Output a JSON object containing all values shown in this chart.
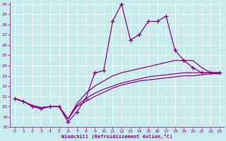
{
  "xlabel": "Windchill (Refroidissement éolien,°C)",
  "bg_color": "#c8ecec",
  "line_color": "#880088",
  "grid_color": "#ffffff",
  "xlim": [
    -0.5,
    23.5
  ],
  "ylim": [
    18,
    30.2
  ],
  "yticks": [
    18,
    19,
    20,
    21,
    22,
    23,
    24,
    25,
    26,
    27,
    28,
    29,
    30
  ],
  "xticks": [
    0,
    1,
    2,
    3,
    4,
    5,
    6,
    7,
    8,
    9,
    10,
    11,
    12,
    13,
    14,
    15,
    16,
    17,
    18,
    19,
    20,
    21,
    22,
    23
  ],
  "line1_x": [
    0,
    1,
    2,
    3,
    4,
    5,
    6,
    7,
    8,
    9,
    10,
    11,
    12,
    13,
    14,
    15,
    16,
    17,
    18,
    19,
    20,
    21,
    22,
    23
  ],
  "line1_y": [
    20.8,
    20.5,
    20.0,
    19.8,
    20.0,
    20.0,
    18.5,
    19.5,
    20.8,
    23.3,
    23.5,
    28.3,
    30.0,
    26.5,
    27.0,
    28.3,
    28.3,
    28.8,
    25.5,
    24.5,
    23.8,
    23.3,
    23.3,
    23.3
  ],
  "line2_x": [
    0,
    1,
    2,
    3,
    4,
    5,
    6,
    7,
    8,
    9,
    10,
    11,
    12,
    13,
    14,
    15,
    16,
    17,
    18,
    19,
    20,
    21,
    22,
    23
  ],
  "line2_y": [
    20.8,
    20.5,
    20.1,
    19.9,
    20.0,
    20.0,
    18.8,
    20.3,
    21.3,
    22.0,
    22.5,
    23.0,
    23.3,
    23.5,
    23.7,
    23.9,
    24.1,
    24.3,
    24.5,
    24.5,
    24.5,
    23.8,
    23.3,
    23.3
  ],
  "line3_x": [
    0,
    1,
    2,
    3,
    4,
    5,
    6,
    7,
    8,
    9,
    10,
    11,
    12,
    13,
    14,
    15,
    16,
    17,
    18,
    19,
    20,
    21,
    22,
    23
  ],
  "line3_y": [
    20.8,
    20.5,
    20.1,
    19.9,
    20.0,
    20.0,
    18.8,
    20.1,
    20.8,
    21.3,
    21.7,
    22.0,
    22.3,
    22.5,
    22.7,
    22.9,
    23.0,
    23.1,
    23.2,
    23.3,
    23.3,
    23.3,
    23.3,
    23.3
  ],
  "line4_x": [
    0,
    1,
    2,
    3,
    4,
    5,
    6,
    7,
    8,
    9,
    10,
    11,
    12,
    13,
    14,
    15,
    16,
    17,
    18,
    19,
    20,
    21,
    22,
    23
  ],
  "line4_y": [
    20.8,
    20.5,
    20.1,
    19.9,
    20.0,
    20.0,
    18.8,
    20.0,
    20.5,
    21.0,
    21.4,
    21.8,
    22.1,
    22.3,
    22.5,
    22.6,
    22.7,
    22.8,
    22.9,
    23.0,
    23.0,
    23.1,
    23.2,
    23.2
  ]
}
